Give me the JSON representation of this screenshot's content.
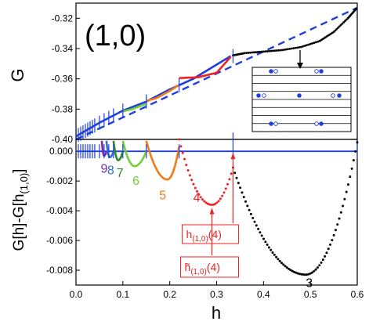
{
  "panel_label": "(1,0)",
  "chart_data": [
    {
      "type": "line",
      "panel": "top",
      "xlabel": "",
      "ylabel": "G",
      "xlim": [
        0.0,
        0.6
      ],
      "ylim": [
        -0.4,
        -0.31
      ],
      "y_ticks": [
        -0.4,
        -0.38,
        -0.36,
        -0.34,
        -0.32
      ],
      "y_tick_labels": [
        "-0.40",
        "-0.38",
        "-0.36",
        "-0.34",
        "-0.32"
      ],
      "series": [
        {
          "color": "#1f3fd8",
          "style": "dashed",
          "x": [
            0.0,
            0.6
          ],
          "y": [
            -0.4,
            -0.313
          ]
        },
        {
          "color": "#1f3fd8",
          "style": "solid",
          "x": [
            0.0,
            0.05,
            0.1,
            0.15,
            0.2,
            0.25,
            0.33
          ],
          "y": [
            -0.398,
            -0.389,
            -0.381,
            -0.375,
            -0.367,
            -0.36,
            -0.345
          ]
        },
        {
          "color": "#ee2222",
          "style": "solid",
          "x": [
            0.22,
            0.26,
            0.3,
            0.33
          ],
          "y": [
            -0.3595,
            -0.359,
            -0.356,
            -0.3455
          ]
        },
        {
          "color": "#f07a1a",
          "style": "solid",
          "x": [
            0.15,
            0.17,
            0.2,
            0.22
          ],
          "y": [
            -0.3745,
            -0.373,
            -0.368,
            -0.364
          ]
        },
        {
          "color": "#6fd136",
          "style": "solid",
          "x": [
            0.1,
            0.12,
            0.15
          ],
          "y": [
            -0.3815,
            -0.38,
            -0.3765
          ]
        },
        {
          "color": "#000000",
          "style": "dots",
          "x": [
            0.335,
            0.36,
            0.4,
            0.44,
            0.48,
            0.52,
            0.55,
            0.58,
            0.6
          ],
          "y": [
            -0.3445,
            -0.343,
            -0.342,
            -0.341,
            -0.339,
            -0.335,
            -0.329,
            -0.32,
            -0.313
          ]
        }
      ],
      "tick_marks_x": [
        0.005,
        0.01,
        0.015,
        0.02,
        0.025,
        0.03,
        0.035,
        0.04,
        0.05,
        0.06,
        0.07,
        0.08,
        0.1,
        0.15,
        0.22,
        0.335
      ],
      "inset": {
        "description_legend": "lattice"
      }
    },
    {
      "type": "line",
      "panel": "bottom",
      "xlabel": "h",
      "ylabel": "G[h]-G[h(1,0)]",
      "xlim": [
        0.0,
        0.6
      ],
      "ylim": [
        -0.009,
        0.0008
      ],
      "x_ticks": [
        0.0,
        0.1,
        0.2,
        0.3,
        0.4,
        0.5,
        0.6
      ],
      "x_tick_labels": [
        "0.0",
        "0.1",
        "0.2",
        "0.3",
        "0.4",
        "0.5",
        "0.6"
      ],
      "y_ticks": [
        0.0,
        -0.002,
        -0.004,
        -0.006,
        -0.008
      ],
      "y_tick_labels": [
        "0.000",
        "-0.002",
        "-0.004",
        "-0.006",
        "-0.008"
      ],
      "baseline": {
        "color": "#1f3fd8",
        "y": 0.0
      },
      "curves": [
        {
          "label": "3",
          "color": "#000000",
          "x0": 0.335,
          "x1": 0.6,
          "xmin": 0.49,
          "ymin": -0.0083,
          "y0": -0.0011,
          "y1": 0.0006
        },
        {
          "label": "4",
          "color": "#ee2222",
          "x0": 0.22,
          "x1": 0.335,
          "xmin": 0.29,
          "ymin": -0.0036,
          "y0": 0.0008,
          "y1": -0.0011
        },
        {
          "label": "5",
          "color": "#f07a1a",
          "x0": 0.15,
          "x1": 0.22,
          "xmin": 0.195,
          "ymin": -0.0019,
          "y0": 0.0007,
          "y1": 0.0003
        },
        {
          "label": "6",
          "color": "#6fd136",
          "x0": 0.1,
          "x1": 0.15,
          "xmin": 0.125,
          "ymin": -0.001,
          "y0": 0.0007,
          "y1": 0.0
        },
        {
          "label": "7",
          "color": "#2c8a2c",
          "x0": 0.08,
          "x1": 0.1,
          "xmin": 0.09,
          "ymin": -0.0006,
          "y0": 0.0007,
          "y1": 0.0
        },
        {
          "label": "8",
          "color": "#2f6fd0",
          "x0": 0.065,
          "x1": 0.08,
          "xmin": 0.072,
          "ymin": -0.0004,
          "y0": 0.0007,
          "y1": 0.0
        },
        {
          "label": "9",
          "color": "#7a2ab0",
          "x0": 0.055,
          "x1": 0.065,
          "xmin": 0.06,
          "ymin": -0.0003,
          "y0": 0.0007,
          "y1": 0.0
        }
      ],
      "tick_marks_x": [
        0.005,
        0.01,
        0.015,
        0.02,
        0.025,
        0.03,
        0.035,
        0.04,
        0.05,
        0.06,
        0.07,
        0.08,
        0.1,
        0.15,
        0.22,
        0.335,
        0.6
      ],
      "annotations": [
        {
          "text": "h(1,0)(4)",
          "display": "h",
          "sub": "(1,0)",
          "tail": "(4)",
          "x": 0.335,
          "color": "#ee2222"
        },
        {
          "text": "h̃(1,0)(4)",
          "display": "h̃",
          "sub": "(1,0)",
          "tail": "(4)",
          "x": 0.29,
          "color": "#ee2222"
        }
      ]
    }
  ],
  "bottom_ylabel": {
    "main": "G[h]-G[h",
    "sub": "(1,0)",
    "end": "]"
  },
  "top_ylabel": "G",
  "xlabel": "h"
}
